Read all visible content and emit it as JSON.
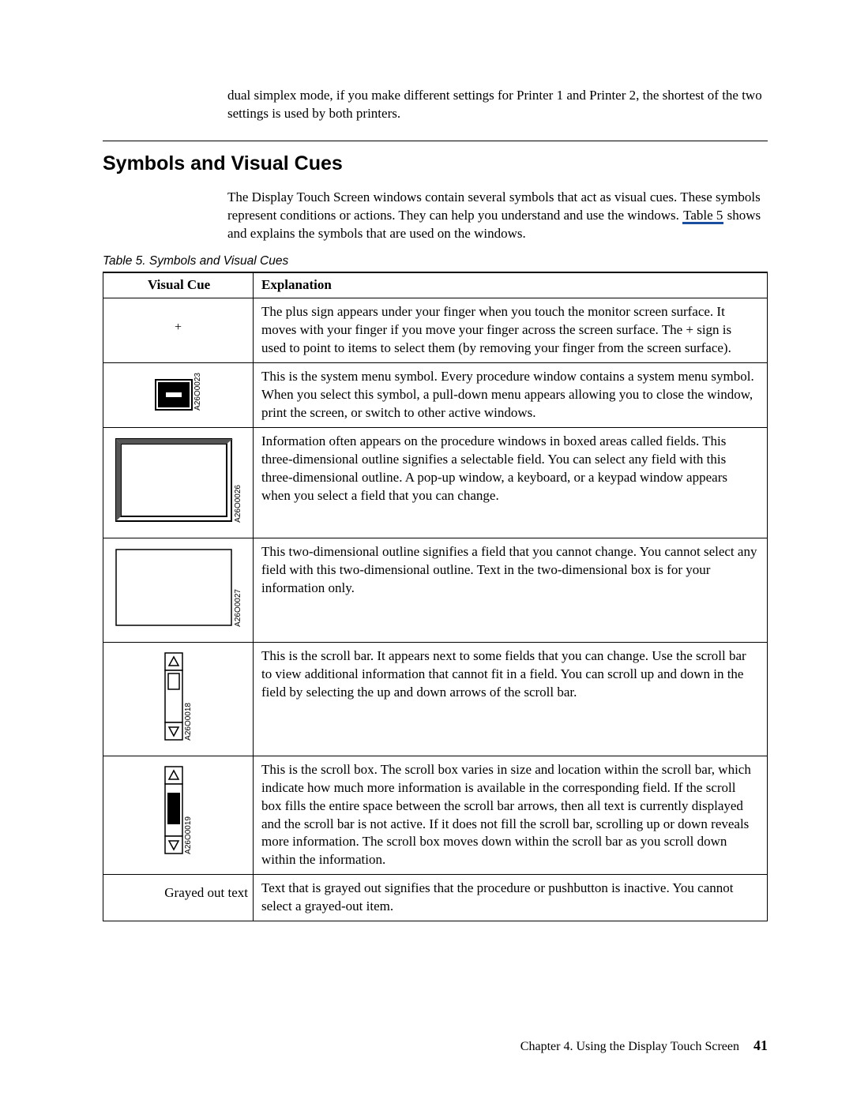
{
  "lead": "dual simplex mode, if you make different settings for Printer 1 and Printer 2, the shortest of the two settings is used by both printers.",
  "section_title": "Symbols and Visual Cues",
  "intro_before_link": "The Display Touch Screen windows contain several symbols that act as visual cues. These symbols represent conditions or actions. They can help you understand and use the windows. ",
  "intro_link": "Table 5",
  "intro_after_link": " shows and explains the symbols that are used on the windows.",
  "table_caption": "Table 5. Symbols and Visual Cues",
  "columns": {
    "cue": "Visual Cue",
    "exp": "Explanation"
  },
  "rows": [
    {
      "cue_text": "+",
      "cue_label": "",
      "svg": "plus",
      "exp": "The plus sign appears under your finger when you touch the monitor screen surface. It moves with your finger if you move your finger across the screen surface. The + sign is used to point to items to select them (by removing your finger from the screen surface)."
    },
    {
      "cue_text": "",
      "cue_label": "A26O0023",
      "svg": "sysmenu",
      "exp": "This is the system menu symbol. Every procedure window contains a system menu symbol. When you select this symbol, a pull-down menu appears allowing you to close the window, print the screen, or switch to other active windows."
    },
    {
      "cue_text": "",
      "cue_label": "A26O0026",
      "svg": "field3d",
      "exp": "Information often appears on the procedure windows in boxed areas called fields. This three-dimensional outline signifies a selectable field. You can select any field with this three-dimensional outline. A pop-up window, a keyboard, or a keypad window appears when you select a field that you can change."
    },
    {
      "cue_text": "",
      "cue_label": "A26O0027",
      "svg": "field2d",
      "exp": "This two-dimensional outline signifies a field that you cannot change. You cannot select any field with this two-dimensional outline. Text in the two-dimensional box is for your information only."
    },
    {
      "cue_text": "",
      "cue_label": "A26O0018",
      "svg": "scrollbar",
      "exp": "This is the scroll bar. It appears next to some fields that you can change. Use the scroll bar to view additional information that cannot fit in a field. You can scroll up and down in the field by selecting the up and down arrows of the scroll bar."
    },
    {
      "cue_text": "",
      "cue_label": "A26O0019",
      "svg": "scrollbox",
      "exp": "This is the scroll box. The scroll box varies in size and location within the scroll bar, which indicate how much more information is available in the corresponding field. If the scroll box fills the entire space between the scroll bar arrows, then all text is currently displayed and the scroll bar is not active. If it does not fill the scroll bar, scrolling up or down reveals more information. The scroll box moves down within the scroll bar as you scroll down within the information."
    },
    {
      "cue_text": "Grayed out text",
      "cue_label": "",
      "svg": "grayed",
      "exp": "Text that is grayed out signifies that the procedure or pushbutton is inactive. You cannot select a grayed-out item."
    }
  ],
  "footer": {
    "chapter": "Chapter 4. Using the Display Touch Screen",
    "page": "41"
  }
}
